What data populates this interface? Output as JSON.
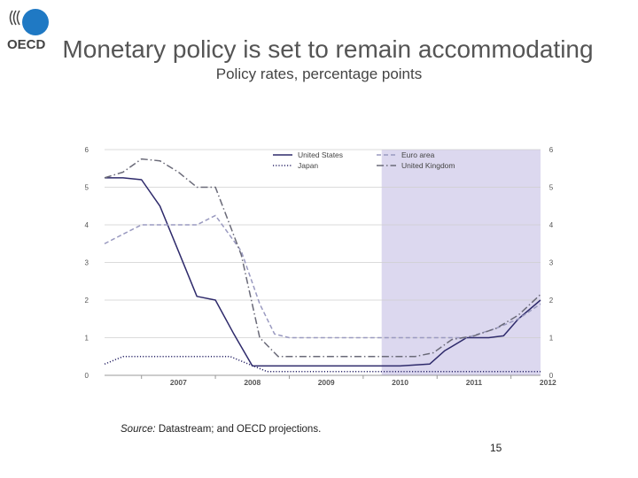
{
  "header": {
    "logo_text": "OECD",
    "title": "Monetary policy is set to remain accommodating",
    "subtitle": "Policy rates, percentage points"
  },
  "footer": {
    "source_label": "Source:",
    "source_text": " Datastream; and OECD projections.",
    "page_number": "15"
  },
  "colors": {
    "us": "#2e2a6b",
    "japan": "#2e2a6b",
    "euro": "#9a9ac0",
    "uk": "#6a6a78",
    "projection_shade": "#dcd8ef",
    "grid": "#cfcfcf"
  },
  "chart_data": {
    "type": "line",
    "x_tick_labels": [
      "2007",
      "2008",
      "2009",
      "2010",
      "2011",
      "2012"
    ],
    "y_ticks_left": [
      "0",
      "1",
      "2",
      "3",
      "4",
      "5",
      "6"
    ],
    "y_ticks_right": [
      "0",
      "1",
      "2",
      "3",
      "4",
      "5",
      "6"
    ],
    "ylim": [
      0,
      6
    ],
    "xlim": [
      2006.5,
      2012.4
    ],
    "projection_start": 2010.25,
    "grid": "horizontal",
    "legend_position": "top",
    "series": [
      {
        "name": "United States",
        "style": "solid",
        "points": [
          [
            2006.5,
            5.25
          ],
          [
            2006.75,
            5.25
          ],
          [
            2007.0,
            5.2
          ],
          [
            2007.25,
            4.5
          ],
          [
            2007.5,
            3.3
          ],
          [
            2007.75,
            2.1
          ],
          [
            2008.0,
            2.0
          ],
          [
            2008.25,
            1.1
          ],
          [
            2008.5,
            0.25
          ],
          [
            2008.75,
            0.25
          ],
          [
            2009.0,
            0.25
          ],
          [
            2010.0,
            0.25
          ],
          [
            2010.5,
            0.25
          ],
          [
            2010.9,
            0.3
          ],
          [
            2011.1,
            0.65
          ],
          [
            2011.4,
            1.0
          ],
          [
            2011.7,
            1.0
          ],
          [
            2011.9,
            1.05
          ],
          [
            2012.1,
            1.5
          ],
          [
            2012.4,
            2.0
          ]
        ]
      },
      {
        "name": "Japan",
        "style": "dotted",
        "points": [
          [
            2006.5,
            0.3
          ],
          [
            2006.75,
            0.5
          ],
          [
            2007.0,
            0.5
          ],
          [
            2007.5,
            0.5
          ],
          [
            2008.0,
            0.5
          ],
          [
            2008.2,
            0.5
          ],
          [
            2008.45,
            0.3
          ],
          [
            2008.7,
            0.1
          ],
          [
            2009.0,
            0.1
          ],
          [
            2012.4,
            0.1
          ]
        ]
      },
      {
        "name": "Euro area",
        "style": "dashed",
        "points": [
          [
            2006.5,
            3.5
          ],
          [
            2006.75,
            3.75
          ],
          [
            2007.0,
            4.0
          ],
          [
            2007.5,
            4.0
          ],
          [
            2007.75,
            4.0
          ],
          [
            2008.0,
            4.25
          ],
          [
            2008.35,
            3.3
          ],
          [
            2008.6,
            1.9
          ],
          [
            2008.8,
            1.1
          ],
          [
            2009.0,
            1.0
          ],
          [
            2010.0,
            1.0
          ],
          [
            2011.0,
            1.0
          ],
          [
            2011.4,
            1.0
          ],
          [
            2011.8,
            1.25
          ],
          [
            2012.1,
            1.5
          ],
          [
            2012.4,
            1.9
          ]
        ]
      },
      {
        "name": "United Kingdom",
        "style": "dashdot",
        "points": [
          [
            2006.5,
            5.25
          ],
          [
            2006.75,
            5.4
          ],
          [
            2007.0,
            5.75
          ],
          [
            2007.25,
            5.7
          ],
          [
            2007.5,
            5.4
          ],
          [
            2007.75,
            5.0
          ],
          [
            2008.0,
            5.0
          ],
          [
            2008.35,
            3.2
          ],
          [
            2008.6,
            1.0
          ],
          [
            2008.85,
            0.5
          ],
          [
            2009.0,
            0.5
          ],
          [
            2010.0,
            0.5
          ],
          [
            2010.7,
            0.5
          ],
          [
            2010.95,
            0.6
          ],
          [
            2011.2,
            0.95
          ],
          [
            2011.5,
            1.05
          ],
          [
            2011.8,
            1.25
          ],
          [
            2012.1,
            1.6
          ],
          [
            2012.4,
            2.15
          ]
        ]
      }
    ]
  }
}
